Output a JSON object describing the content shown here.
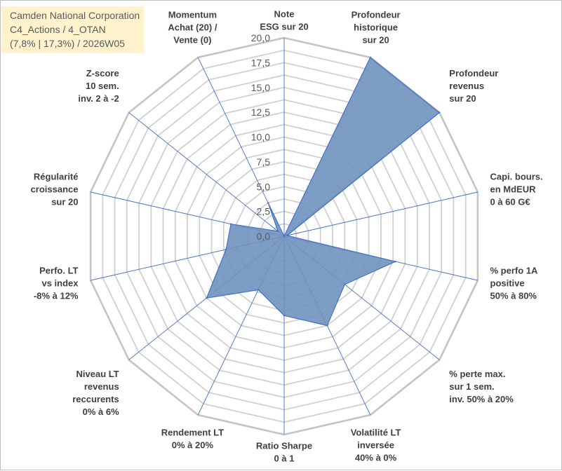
{
  "header": {
    "line1": "Camden National Corporation",
    "line2": "C4_Actions / 4_OTAN",
    "line3": "(7,8% | 17,3%) / 2026W05",
    "background": "#fff2cc"
  },
  "chart_data": {
    "type": "radar",
    "rmin": 0,
    "rmax": 20,
    "tick_step": 2.5,
    "tick_labels": [
      "0,0",
      "2,5",
      "5,0",
      "7,5",
      "10,0",
      "12,5",
      "15,0",
      "17,5",
      "20,0"
    ],
    "grid_minor_step": 1.25,
    "colors": {
      "fill": "#7092be",
      "stroke": "#4472c4",
      "grid": "#d0d0d0",
      "outer_ring": "#c4c4c4",
      "spoke": "#4472c4"
    },
    "axes": [
      {
        "label": [
          "Note",
          "ESG sur 20"
        ],
        "value": 0.0
      },
      {
        "label": [
          "Profondeur",
          "historique",
          "sur 20"
        ],
        "value": 20.0
      },
      {
        "label": [
          "Profondeur",
          "revenus",
          "sur 20"
        ],
        "value": 20.0
      },
      {
        "label": [
          "Capi. bours.",
          "en MdEUR",
          "0 à 60 G€"
        ],
        "value": 0.3
      },
      {
        "label": [
          "% perfo 1A",
          "positive",
          "50% à 80%"
        ],
        "value": 11.5
      },
      {
        "label": [
          "% perte max.",
          "sur 1 sem.",
          "inv. 50% à 20%"
        ],
        "value": 7.8
      },
      {
        "label": [
          "Volatilité LT",
          "inversée",
          "40% à 0%"
        ],
        "value": 10.0
      },
      {
        "label": [
          "Ratio Sharpe",
          "0 à 1"
        ],
        "value": 8.0
      },
      {
        "label": [
          "Rendement LT",
          "0% à 20%"
        ],
        "value": 6.0
      },
      {
        "label": [
          "Niveau LT",
          "revenus",
          "reccurents",
          "0% à 6%"
        ],
        "value": 10.0
      },
      {
        "label": [
          "Perfo. LT",
          "vs index",
          "-8% à 12%"
        ],
        "value": 6.0
      },
      {
        "label": [
          "Régularité",
          "croissance",
          "sur 20"
        ],
        "value": 5.5
      },
      {
        "label": [
          "Z-score",
          "10 sem.",
          "inv. 2 à -2"
        ],
        "value": 0.8
      },
      {
        "label": [
          "Momentum",
          "Achat (20) /",
          "Vente (0)"
        ],
        "value": 3.7
      }
    ]
  }
}
